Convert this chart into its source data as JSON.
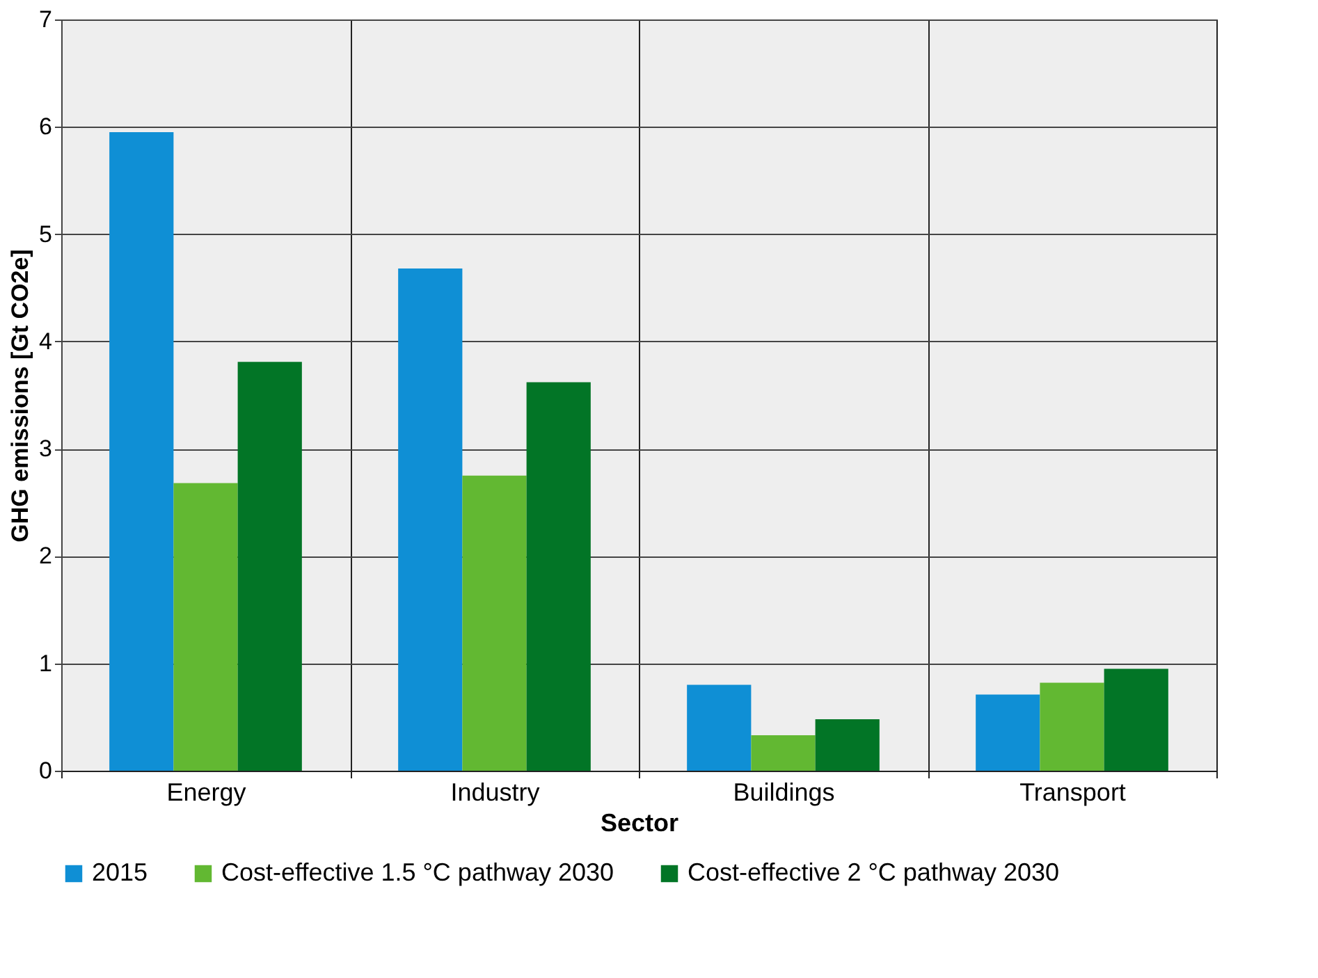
{
  "chart_data": {
    "type": "bar",
    "xlabel": "Sector",
    "ylabel": "GHG emissions [Gt CO2e]",
    "categories": [
      "Energy",
      "Industry",
      "Buildings",
      "Transport"
    ],
    "series": [
      {
        "name": "2015",
        "color": "#0f8fd5",
        "values": [
          5.95,
          4.68,
          0.8,
          0.71
        ]
      },
      {
        "name": "Cost-effective 1.5 °C pathway 2030",
        "color": "#62b832",
        "values": [
          2.68,
          2.75,
          0.33,
          0.82
        ]
      },
      {
        "name": "Cost-effective 2 °C pathway 2030",
        "color": "#027526",
        "values": [
          3.81,
          3.62,
          0.48,
          0.95
        ]
      }
    ],
    "ylim": [
      0,
      7
    ],
    "yticks": [
      0,
      1,
      2,
      3,
      4,
      5,
      6,
      7
    ],
    "grid": true,
    "legend": "bottom"
  }
}
